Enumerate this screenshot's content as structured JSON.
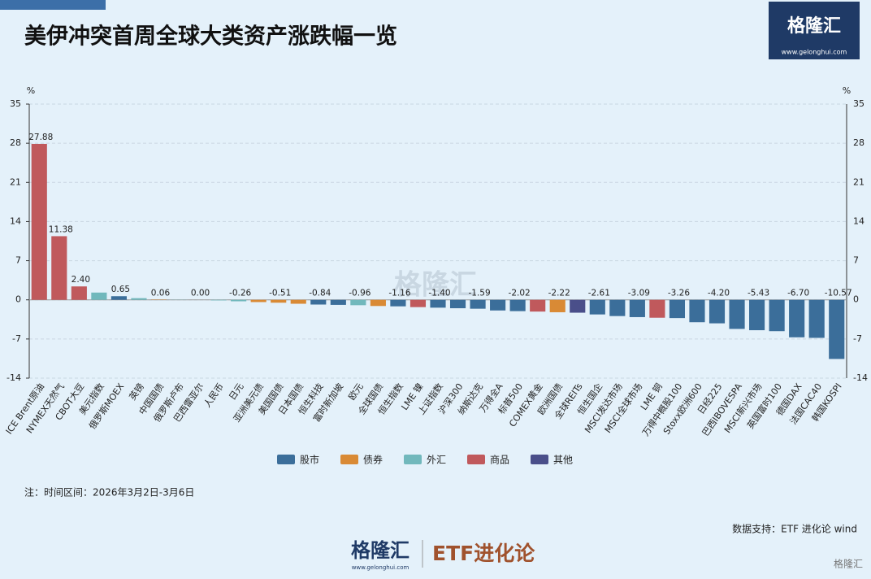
{
  "header": {
    "title": "美伊冲突首周全球大类资产涨跌幅一览",
    "logo": "格隆汇",
    "logo_url": "www.gelonghui.com"
  },
  "chart_data": {
    "type": "bar",
    "y_unit": "%",
    "categories": [
      "ICE Brent原油",
      "NYMEX天然气",
      "CBOT大豆",
      "美元指数",
      "俄罗斯MOEX",
      "英镑",
      "中国国债",
      "俄罗斯卢布",
      "巴西雷亚尔",
      "人民币",
      "日元",
      "亚洲美元债",
      "美国国债",
      "日本国债",
      "恒生科技",
      "富时新加坡",
      "欧元",
      "全球国债",
      "恒生指数",
      "LME 镍",
      "上证指数",
      "沪深300",
      "纳斯达克",
      "万得全A",
      "标普500",
      "COMEX黄金",
      "欧洲国债",
      "全球REITs",
      "恒生国企",
      "MSCI发达市场",
      "MSCI全球市场",
      "LME 铜",
      "万得中概股100",
      "Stoxx欧洲600",
      "日经225",
      "巴西IBOVESPA",
      "MSCI新兴市场",
      "英国富时100",
      "德国DAX",
      "法国CAC40",
      "韩国KOSPI"
    ],
    "series": [
      {
        "name": "股市",
        "color": "#3b6e9a",
        "values": [
          null,
          null,
          null,
          null,
          0.65,
          null,
          null,
          null,
          null,
          null,
          null,
          null,
          null,
          null,
          -0.84,
          -0.9,
          null,
          null,
          -1.16,
          null,
          -1.4,
          -1.5,
          -1.59,
          -1.9,
          -2.02,
          null,
          null,
          null,
          -2.61,
          -2.9,
          -3.09,
          null,
          -3.26,
          -4.0,
          -4.2,
          -5.2,
          -5.43,
          -5.6,
          -6.7,
          -6.8,
          -10.57
        ],
        "value_labels": [
          null,
          null,
          null,
          null,
          "0.65",
          null,
          null,
          null,
          null,
          null,
          null,
          null,
          null,
          null,
          "-0.84",
          null,
          null,
          null,
          "-1.16",
          null,
          "-1.40",
          null,
          "-1.59",
          null,
          "-2.02",
          null,
          null,
          null,
          "-2.61",
          null,
          "-3.09",
          null,
          "-3.26",
          null,
          "-4.20",
          null,
          "-5.43",
          null,
          "-6.70",
          null,
          "-10.57"
        ]
      },
      {
        "name": "债券",
        "color": "#d98a35",
        "values": [
          null,
          null,
          null,
          null,
          null,
          null,
          0.06,
          null,
          null,
          null,
          null,
          -0.4,
          -0.51,
          -0.7,
          null,
          null,
          null,
          -1.1,
          null,
          null,
          null,
          null,
          null,
          null,
          null,
          null,
          -2.22,
          null,
          null,
          null,
          null,
          null,
          null,
          null,
          null,
          null,
          null,
          null,
          null,
          null,
          null
        ],
        "value_labels": [
          null,
          null,
          null,
          null,
          null,
          null,
          "0.06",
          null,
          null,
          null,
          null,
          null,
          "-0.51",
          null,
          null,
          null,
          null,
          null,
          null,
          null,
          null,
          null,
          null,
          null,
          null,
          null,
          "-2.22",
          null,
          null,
          null,
          null,
          null,
          null,
          null,
          null,
          null,
          null,
          null,
          null,
          null,
          null
        ]
      },
      {
        "name": "外汇",
        "color": "#71b8bc",
        "values": [
          null,
          null,
          null,
          1.3,
          null,
          0.3,
          null,
          0.03,
          0,
          -0.1,
          -0.26,
          null,
          null,
          null,
          null,
          null,
          -0.96,
          null,
          null,
          null,
          null,
          null,
          null,
          null,
          null,
          null,
          null,
          null,
          null,
          null,
          null,
          null,
          null,
          null,
          null,
          null,
          null,
          null,
          null,
          null,
          null
        ],
        "value_labels": [
          null,
          null,
          null,
          null,
          null,
          null,
          null,
          null,
          "0.00",
          null,
          "-0.26",
          null,
          null,
          null,
          null,
          null,
          "-0.96",
          null,
          null,
          null,
          null,
          null,
          null,
          null,
          null,
          null,
          null,
          null,
          null,
          null,
          null,
          null,
          null,
          null,
          null,
          null,
          null,
          null,
          null,
          null,
          null
        ]
      },
      {
        "name": "商品",
        "color": "#c0595c",
        "values": [
          27.88,
          11.38,
          2.4,
          null,
          null,
          null,
          null,
          null,
          null,
          null,
          null,
          null,
          null,
          null,
          null,
          null,
          null,
          null,
          null,
          -1.3,
          null,
          null,
          null,
          null,
          null,
          -2.1,
          null,
          null,
          null,
          null,
          null,
          -3.2,
          null,
          null,
          null,
          null,
          null,
          null,
          null,
          null,
          null
        ],
        "value_labels": [
          "27.88",
          "11.38",
          "2.40",
          null,
          null,
          null,
          null,
          null,
          null,
          null,
          null,
          null,
          null,
          null,
          null,
          null,
          null,
          null,
          null,
          null,
          null,
          null,
          null,
          null,
          null,
          null,
          null,
          null,
          null,
          null,
          null,
          null,
          null,
          null,
          null,
          null,
          null,
          null,
          null,
          null,
          null
        ]
      },
      {
        "name": "其他",
        "color": "#4a4f8a",
        "values": [
          null,
          null,
          null,
          null,
          null,
          null,
          null,
          null,
          null,
          null,
          null,
          null,
          null,
          null,
          null,
          null,
          null,
          null,
          null,
          null,
          null,
          null,
          null,
          null,
          null,
          null,
          null,
          -2.3,
          null,
          null,
          null,
          null,
          null,
          null,
          null,
          null,
          null,
          null,
          null,
          null,
          null
        ],
        "value_labels": [
          null,
          null,
          null,
          null,
          null,
          null,
          null,
          null,
          null,
          null,
          null,
          null,
          null,
          null,
          null,
          null,
          null,
          null,
          null,
          null,
          null,
          null,
          null,
          null,
          null,
          null,
          null,
          null,
          null,
          null,
          null,
          null,
          null,
          null,
          null,
          null,
          null,
          null,
          null,
          null,
          null
        ]
      }
    ],
    "ylim": [
      -14,
      35
    ],
    "yticks": [
      -14,
      -7,
      0,
      7,
      14,
      21,
      28,
      35
    ],
    "grid": true,
    "note": "注：时间区间：2026年3月2日-3月6日",
    "source": "数据支持：ETF 进化论 wind"
  },
  "footer": {
    "logo": "格隆汇",
    "logo_url": "www.gelonghui.com",
    "brand": "ETF进化论",
    "corner": "格隆汇"
  }
}
